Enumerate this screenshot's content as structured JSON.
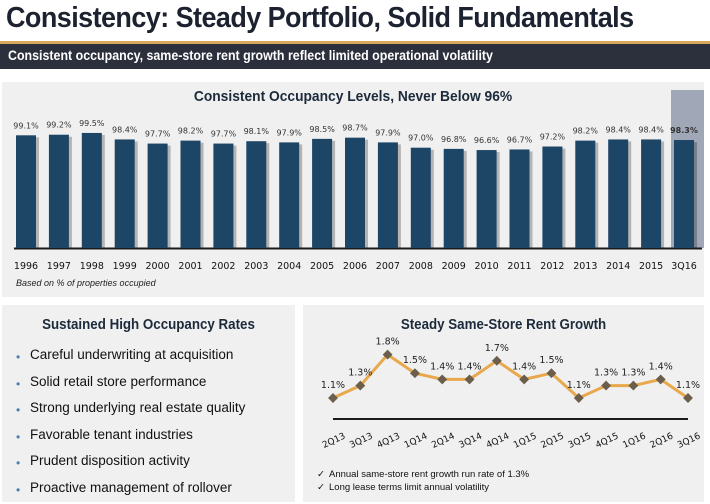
{
  "header": {
    "title": "Consistency: Steady Portfolio, Solid Fundamentals",
    "subtitle": "Consistent occupancy, same-store rent growth reflect limited operational volatility"
  },
  "colors": {
    "bar": "#1c4566",
    "highlight": "#a0a8b8",
    "line": "#e8a84c",
    "marker": "#6b5e4a",
    "accent_gold": "#d9a85a",
    "subbar_bg": "#2b303c",
    "panel_bg": "#f0f0f0",
    "bullet": "#4a7fb6"
  },
  "occupancy_panel": {
    "title": "Consistent Occupancy Levels, Never Below 96%",
    "footnote": "Based on % of properties occupied"
  },
  "left_panel": {
    "title": "Sustained High Occupancy Rates",
    "bullet_icon": "bullet-dot",
    "items": [
      "Careful underwriting at acquisition",
      "Solid retail store performance",
      "Strong underlying real estate quality",
      "Favorable tenant industries",
      "Prudent disposition activity",
      "Proactive management of rollover"
    ]
  },
  "rent_panel": {
    "title": "Steady Same-Store Rent Growth",
    "check_icon": "check-mark",
    "checks": [
      "Annual same-store rent growth run rate of 1.3%",
      "Long lease terms limit annual volatility"
    ]
  },
  "chart_data": [
    {
      "type": "bar",
      "title": "Consistent Occupancy Levels, Never Below 96%",
      "xlabel": "",
      "ylabel": "",
      "categories": [
        "1996",
        "1997",
        "1998",
        "1999",
        "2000",
        "2001",
        "2002",
        "2003",
        "2004",
        "2005",
        "2006",
        "2007",
        "2008",
        "2009",
        "2010",
        "2011",
        "2012",
        "2013",
        "2014",
        "2015",
        "3Q16"
      ],
      "values": [
        99.1,
        99.2,
        99.5,
        98.4,
        97.7,
        98.2,
        97.7,
        98.1,
        97.9,
        98.5,
        98.7,
        97.9,
        97.0,
        96.8,
        96.6,
        96.7,
        97.2,
        98.2,
        98.4,
        98.4,
        98.3
      ],
      "labels": [
        "99.1%",
        "99.2%",
        "99.5%",
        "98.4%",
        "97.7%",
        "98.2%",
        "97.7%",
        "98.1%",
        "97.9%",
        "98.5%",
        "98.7%",
        "97.9%",
        "97.0%",
        "96.8%",
        "96.6%",
        "96.7%",
        "97.2%",
        "98.2%",
        "98.4%",
        "98.4%",
        "98.3%"
      ],
      "highlighted": "3Q16",
      "ylim": [
        80,
        100
      ],
      "grid": false,
      "legend": "none",
      "note": "Based on % of properties occupied"
    },
    {
      "type": "line",
      "title": "Steady Same-Store Rent Growth",
      "xlabel": "",
      "ylabel": "",
      "categories": [
        "2Q13",
        "3Q13",
        "4Q13",
        "1Q14",
        "2Q14",
        "3Q14",
        "4Q14",
        "1Q15",
        "2Q15",
        "3Q15",
        "4Q15",
        "1Q16",
        "2Q16",
        "3Q16"
      ],
      "values": [
        1.1,
        1.3,
        1.8,
        1.5,
        1.4,
        1.4,
        1.7,
        1.4,
        1.5,
        1.1,
        1.3,
        1.3,
        1.4,
        1.1
      ],
      "labels": [
        "1.1%",
        "1.3%",
        "1.8%",
        "1.5%",
        "1.4%",
        "1.4%",
        "1.7%",
        "1.4%",
        "1.5%",
        "1.1%",
        "1.3%",
        "1.3%",
        "1.4%",
        "1.1%"
      ],
      "ylim": [
        0,
        2.5
      ],
      "grid": false,
      "legend": "none"
    }
  ]
}
